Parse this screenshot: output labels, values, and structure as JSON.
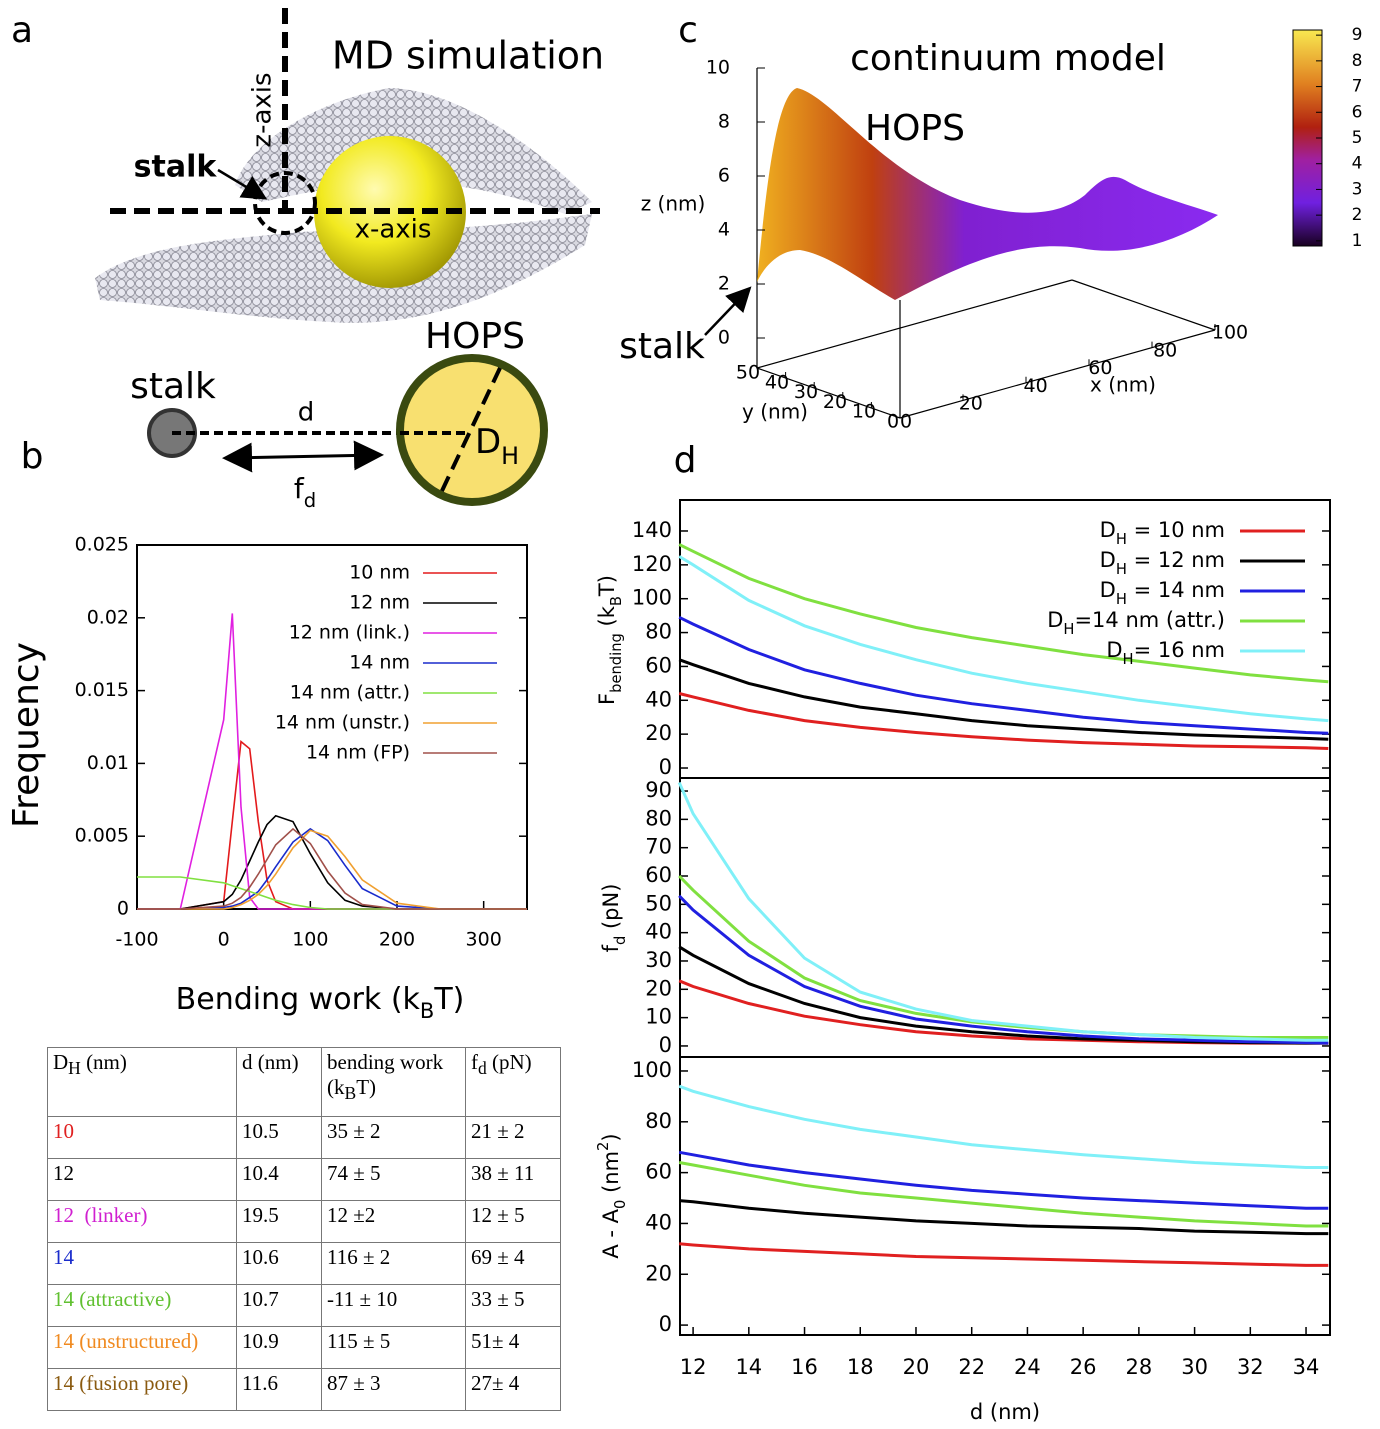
{
  "panel_labels": {
    "a": "a",
    "b": "b",
    "c": "c",
    "d": "d"
  },
  "md_panel": {
    "title": "MD simulation",
    "z_axis": "z-axis",
    "x_axis": "x-axis",
    "stalk": "stalk"
  },
  "schematic": {
    "stalk": "stalk",
    "hops": "HOPS",
    "d": "d",
    "fd": [
      "f",
      {
        "sub": "d"
      }
    ],
    "dh": [
      "D",
      {
        "sub": "H"
      }
    ]
  },
  "chart_data": [
    {
      "type": "line",
      "ylabel": "Frequency",
      "xlabel": [
        "Bending work (k",
        {
          "sub": "B"
        },
        "T)"
      ],
      "x": [
        -100,
        -50,
        0,
        10,
        20,
        30,
        40,
        50,
        60,
        80,
        100,
        120,
        140,
        160,
        200,
        250,
        300,
        350
      ],
      "xlim": [
        -100,
        350
      ],
      "xticks": [
        -100,
        0,
        100,
        200,
        300
      ],
      "ylim": [
        0,
        0.025
      ],
      "yticks": [
        0,
        0.005,
        0.01,
        0.015,
        0.02,
        0.025
      ],
      "legend": "upper right",
      "series": [
        {
          "name": "10 nm",
          "color": "#e31a1c",
          "values": [
            0,
            0,
            0.0005,
            0.006,
            0.0115,
            0.011,
            0.006,
            0.002,
            0.0005,
            0,
            0,
            0,
            0,
            0,
            0,
            0,
            0,
            0
          ]
        },
        {
          "name": "12 nm",
          "color": "#000000",
          "values": [
            0,
            0,
            0.0005,
            0.001,
            0.002,
            0.0033,
            0.0046,
            0.0058,
            0.0064,
            0.006,
            0.0038,
            0.0018,
            0.0006,
            0.0002,
            0,
            0,
            0,
            0
          ]
        },
        {
          "name": "12 nm (link.)",
          "color": "#e020e0",
          "values": [
            0,
            0,
            0.013,
            0.0203,
            0.007,
            0.0008,
            0,
            0,
            0,
            0,
            0,
            0,
            0,
            0,
            0,
            0,
            0,
            0
          ]
        },
        {
          "name": "14 nm",
          "color": "#1a2ccc",
          "values": [
            0,
            0,
            0.0001,
            0.0002,
            0.0004,
            0.0008,
            0.0012,
            0.002,
            0.0029,
            0.0046,
            0.0055,
            0.0047,
            0.003,
            0.0014,
            0.0002,
            0,
            0,
            0
          ]
        },
        {
          "name": "14 nm (attr.)",
          "color": "#80e040",
          "values": [
            0.0022,
            0.0022,
            0.0018,
            0.0016,
            0.0014,
            0.0012,
            0.001,
            0.0008,
            0.0006,
            0.0003,
            0.0001,
            0,
            0,
            0,
            0,
            0,
            0,
            0
          ]
        },
        {
          "name": "14 nm (unstr.)",
          "color": "#f0a030",
          "values": [
            0,
            0,
            0,
            0.0001,
            0.0003,
            0.0006,
            0.001,
            0.0016,
            0.0024,
            0.0042,
            0.0054,
            0.005,
            0.0036,
            0.002,
            0.0004,
            0,
            0,
            0
          ]
        },
        {
          "name": "14 nm (FP)",
          "color": "#a0504a",
          "values": [
            0,
            0,
            0.0002,
            0.0004,
            0.0008,
            0.0015,
            0.0024,
            0.0034,
            0.0044,
            0.0055,
            0.0045,
            0.0026,
            0.0011,
            0.0003,
            0,
            0,
            0,
            0
          ]
        }
      ]
    },
    {
      "type": "surface",
      "title": "continuum model",
      "annotations": {
        "hops": "HOPS",
        "stalk": "stalk"
      },
      "xlabel": "x (nm)",
      "ylabel": "y (nm)",
      "zlabel": "z (nm)",
      "xlim": [
        0,
        100
      ],
      "xticks": [
        0,
        20,
        40,
        60,
        80,
        100
      ],
      "ylim": [
        0,
        50
      ],
      "yticks": [
        0,
        10,
        20,
        30,
        40,
        50
      ],
      "zlim": [
        0,
        10
      ],
      "zticks": [
        0,
        2,
        4,
        6,
        8,
        10
      ],
      "clim": [
        0.8,
        9.2
      ],
      "cticks": [
        1,
        2,
        3,
        4,
        5,
        6,
        7,
        8,
        9
      ]
    },
    {
      "type": "line",
      "ylabel": [
        "F",
        {
          "sub": "bending"
        },
        " (k",
        {
          "sub": "B"
        },
        "T)"
      ],
      "x": [
        11.5,
        12,
        14,
        16,
        18,
        20,
        22,
        24,
        26,
        28,
        30,
        32,
        34,
        34.8
      ],
      "xlim": [
        11.53,
        34.86
      ],
      "ylim": [
        -5.9,
        158.3
      ],
      "yticks": [
        0,
        20,
        40,
        60,
        80,
        100,
        120,
        140
      ],
      "legend": "upper right",
      "series": [
        {
          "name": [
            "D",
            {
              "sub": "H"
            },
            " = 10 nm"
          ],
          "color": "#e02020",
          "values": [
            44,
            42,
            34,
            28,
            24,
            21,
            18.5,
            16.5,
            15,
            14,
            13,
            12.5,
            12,
            11.5
          ]
        },
        {
          "name": [
            "D",
            {
              "sub": "H"
            },
            " = 12 nm"
          ],
          "color": "#000000",
          "values": [
            64,
            61,
            50,
            42,
            36,
            32,
            28,
            25,
            23,
            21,
            19.5,
            18.5,
            17.5,
            17
          ]
        },
        {
          "name": [
            "D",
            {
              "sub": "H"
            },
            " = 14 nm"
          ],
          "color": "#2020e0",
          "values": [
            89,
            85,
            70,
            58,
            50,
            43,
            38,
            34,
            30,
            27,
            25,
            23,
            21,
            20.5
          ]
        },
        {
          "name": [
            "D",
            {
              "sub": "H"
            },
            "=14 nm (attr.)"
          ],
          "color": "#80e040",
          "values": [
            132,
            128,
            112,
            100,
            91,
            83,
            77,
            72,
            67,
            63,
            59,
            55,
            52,
            51
          ]
        },
        {
          "name": [
            "D",
            {
              "sub": "H"
            },
            "= 16 nm"
          ],
          "color": "#80f0f8",
          "values": [
            125,
            120,
            99,
            84,
            73,
            64,
            56,
            50,
            45,
            40,
            36,
            32,
            29,
            28
          ]
        }
      ]
    },
    {
      "type": "line",
      "ylabel": [
        "f",
        {
          "sub": "d"
        },
        " (pN)"
      ],
      "x": [
        11.5,
        12,
        14,
        16,
        18,
        20,
        22,
        24,
        26,
        28,
        30,
        32,
        34,
        34.8
      ],
      "xlim": [
        11.53,
        34.86
      ],
      "ylim": [
        -3.9,
        94.6
      ],
      "yticks": [
        0,
        10,
        20,
        30,
        40,
        50,
        60,
        70,
        80,
        90
      ],
      "series": [
        {
          "color": "#e02020",
          "values": [
            23,
            21,
            15,
            10.5,
            7.5,
            5,
            3.5,
            2.5,
            2,
            1.5,
            1.2,
            1,
            1,
            1
          ]
        },
        {
          "color": "#000000",
          "values": [
            35,
            32,
            22,
            15,
            10,
            7,
            5,
            3.5,
            2.5,
            2,
            1.5,
            1.2,
            1,
            1
          ]
        },
        {
          "color": "#2020e0",
          "values": [
            53,
            48,
            32,
            21,
            14,
            9.5,
            7,
            5,
            3.5,
            2.5,
            2,
            1.5,
            1.2,
            1
          ]
        },
        {
          "color": "#80e040",
          "values": [
            60,
            55,
            37,
            24,
            16,
            11.5,
            8.5,
            6.5,
            5,
            4,
            3.5,
            3,
            3,
            3
          ]
        },
        {
          "color": "#80f0f8",
          "values": [
            93,
            82,
            52,
            31,
            19,
            13,
            9,
            7,
            5,
            4,
            3,
            2.5,
            2,
            2
          ]
        }
      ]
    },
    {
      "type": "line",
      "ylabel": [
        "A - A",
        {
          "sub": "0"
        },
        " (nm",
        {
          "sup": "2"
        },
        ")"
      ],
      "xlabel": "d (nm)",
      "x": [
        11.5,
        12,
        14,
        16,
        18,
        20,
        22,
        24,
        26,
        28,
        30,
        32,
        34,
        34.8
      ],
      "xlim": [
        11.53,
        34.86
      ],
      "xticks": [
        12,
        14,
        16,
        18,
        20,
        22,
        24,
        26,
        28,
        30,
        32,
        34
      ],
      "ylim": [
        -3.9,
        105.5
      ],
      "yticks": [
        0,
        20,
        40,
        60,
        80,
        100
      ],
      "series": [
        {
          "color": "#e02020",
          "values": [
            32,
            31.5,
            30,
            29,
            28,
            27,
            26.5,
            26,
            25.5,
            25,
            24.5,
            24,
            23.5,
            23.5
          ]
        },
        {
          "color": "#000000",
          "values": [
            49,
            48.5,
            46,
            44,
            42.5,
            41,
            40,
            39,
            38.5,
            38,
            37,
            36.5,
            36,
            36
          ]
        },
        {
          "color": "#2020e0",
          "values": [
            68,
            67,
            63,
            60,
            57.5,
            55,
            53,
            51.5,
            50,
            49,
            48,
            47,
            46,
            46
          ]
        },
        {
          "color": "#80e040",
          "values": [
            64,
            63,
            59,
            55,
            52,
            50,
            48,
            46,
            44,
            42.5,
            41,
            40,
            39,
            39
          ]
        },
        {
          "color": "#80f0f8",
          "values": [
            94,
            92,
            86,
            81,
            77,
            74,
            71,
            69,
            67,
            65.5,
            64,
            63,
            62,
            62
          ]
        }
      ]
    }
  ],
  "table": {
    "header": [
      [
        "D",
        {
          "sub": "H"
        },
        " (nm)"
      ],
      "d (nm)",
      [
        "bending work (k",
        {
          "sub": "B"
        },
        "T)"
      ],
      [
        "f",
        {
          "sub": "d"
        },
        " (pN)"
      ]
    ],
    "row_colors": [
      "#e02020",
      "#000000",
      "#d020d0",
      "#1a2ccc",
      "#60c030",
      "#f08a20",
      "#8a5a10"
    ],
    "rows": [
      [
        "10",
        "10.5",
        "35 ± 2",
        "21 ± 2"
      ],
      [
        "12",
        "10.4",
        "74 ± 5",
        "38 ± 11"
      ],
      [
        "12  (linker)",
        "19.5",
        "12 ±2",
        "12 ± 5"
      ],
      [
        "14",
        "10.6",
        "116 ± 2",
        "69 ± 4"
      ],
      [
        "14 (attractive)",
        "10.7",
        "-11 ± 10",
        "33 ± 5"
      ],
      [
        "14 (unstructured)",
        "10.9",
        "115 ± 5",
        "51± 4"
      ],
      [
        "14 (fusion pore)",
        "11.6",
        "87 ± 3",
        "27± 4"
      ]
    ]
  }
}
